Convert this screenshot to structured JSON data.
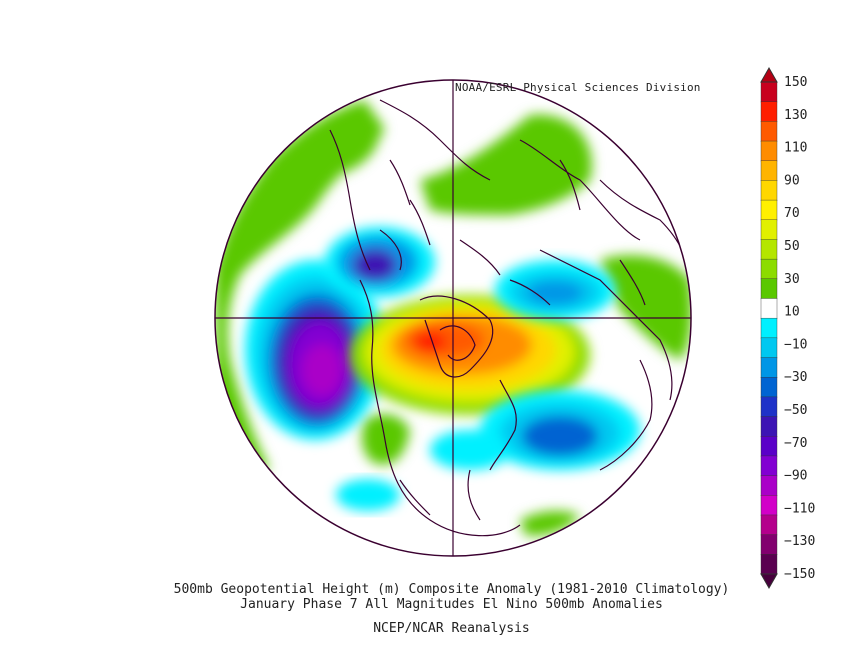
{
  "header": {
    "credit": "NOAA/ESRL Physical Sciences Division"
  },
  "captions": {
    "line1": "500mb Geopotential Height (m) Composite Anomaly (1981-2010 Climatology)",
    "line2": "January Phase 7 All Magnitudes El Nino 500mb Anomalies",
    "line3": "NCEP/NCAR Reanalysis"
  },
  "colorbar": {
    "labels": [
      "150",
      "130",
      "110",
      "90",
      "70",
      "50",
      "30",
      "10",
      "-10",
      "-30",
      "-50",
      "-70",
      "-90",
      "-110",
      "-130",
      "-150"
    ],
    "colors": [
      "#c8001e",
      "#ff1e00",
      "#ff5a00",
      "#ff8c00",
      "#ffb400",
      "#ffd700",
      "#fff000",
      "#e1f000",
      "#b4e600",
      "#8cdc00",
      "#5ac800",
      "#ffffff",
      "#00f0ff",
      "#00c8f0",
      "#0096e6",
      "#0064d2",
      "#1e32c8",
      "#3c14b4",
      "#5a00c8",
      "#8200d2",
      "#aa00c8",
      "#d200c8",
      "#b4008c",
      "#82006e",
      "#5a0050"
    ],
    "top_arrow_color": "#b40014",
    "bottom_arrow_color": "#46003c"
  },
  "map": {
    "projection": "north-polar-stereographic",
    "variable": "500mb geopotential height anomaly (m)",
    "features": [
      {
        "name": "trough-north-pacific",
        "sign": "negative",
        "peak": -110
      },
      {
        "name": "ridge-canada-hudson-bay",
        "sign": "positive",
        "peak": 130
      },
      {
        "name": "trough-north-atlantic",
        "sign": "negative",
        "peak": -60
      },
      {
        "name": "trough-siberia",
        "sign": "negative",
        "peak": -40
      },
      {
        "name": "trough-east-siberia",
        "sign": "negative",
        "peak": -70
      }
    ]
  }
}
